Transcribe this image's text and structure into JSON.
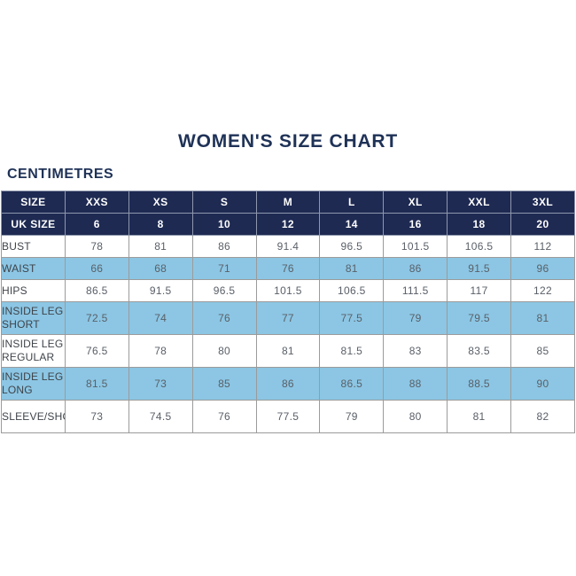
{
  "page": {
    "title": "WOMEN'S SIZE CHART",
    "unit_label": "CENTIMETRES"
  },
  "colors": {
    "navy_header": "#1e2a52",
    "title_text": "#1f3257",
    "stripe_blue": "#8cc6e4",
    "cell_border": "#9b9b9b",
    "label_text": "#3f444a",
    "value_text": "#5a6068",
    "background": "#ffffff"
  },
  "chart_data": {
    "type": "table",
    "title": "WOMEN'S SIZE CHART",
    "unit_label": "CENTIMETRES",
    "size_header": [
      "SIZE",
      "XXS",
      "XS",
      "S",
      "M",
      "L",
      "XL",
      "XXL",
      "3XL"
    ],
    "uk_size_row": {
      "label": "UK SIZE",
      "values": [
        "6",
        "8",
        "10",
        "12",
        "14",
        "16",
        "18",
        "20"
      ]
    },
    "body_rows": [
      {
        "label": "BUST",
        "values": [
          "78",
          "81",
          "86",
          "91.4",
          "96.5",
          "101.5",
          "106.5",
          "112"
        ]
      },
      {
        "label": "WAIST",
        "values": [
          "66",
          "68",
          "71",
          "76",
          "81",
          "86",
          "91.5",
          "96"
        ]
      },
      {
        "label": "HIPS",
        "values": [
          "86.5",
          "91.5",
          "96.5",
          "101.5",
          "106.5",
          "111.5",
          "117",
          "122"
        ]
      },
      {
        "label": "INSIDE LEG SHORT",
        "values": [
          "72.5",
          "74",
          "76",
          "77",
          "77.5",
          "79",
          "79.5",
          "81"
        ]
      },
      {
        "label": "INSIDE LEG REGULAR",
        "values": [
          "76.5",
          "78",
          "80",
          "81",
          "81.5",
          "83",
          "83.5",
          "85"
        ]
      },
      {
        "label": "INSIDE LEG LONG",
        "values": [
          "81.5",
          "73",
          "85",
          "86",
          "86.5",
          "88",
          "88.5",
          "90"
        ]
      },
      {
        "label": "SLEEVE/SHOULDER",
        "values": [
          "73",
          "74.5",
          "76",
          "77.5",
          "79",
          "80",
          "81",
          "82"
        ]
      }
    ]
  }
}
